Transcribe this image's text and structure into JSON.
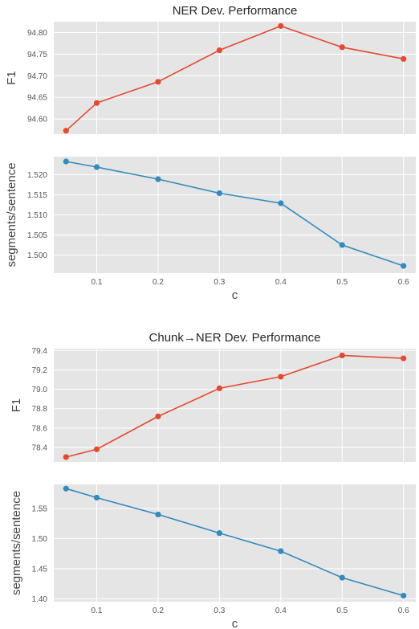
{
  "chart_data": [
    {
      "type": "line",
      "title": "NER Dev. Performance",
      "xlabel": "",
      "ylabel": "F1",
      "xlim": [
        0.03,
        0.62
      ],
      "ylim": [
        94.565,
        94.825
      ],
      "xticks": [
        0.1,
        0.2,
        0.3,
        0.4,
        0.5,
        0.6
      ],
      "yticks": [
        94.6,
        94.65,
        94.7,
        94.75,
        94.8
      ],
      "ytick_labels": [
        "94.60",
        "94.65",
        "94.70",
        "94.75",
        "94.80"
      ],
      "color": "#e24a33",
      "x": [
        0.05,
        0.1,
        0.2,
        0.3,
        0.4,
        0.5,
        0.6
      ],
      "y": [
        94.573,
        94.637,
        94.686,
        94.759,
        94.815,
        94.766,
        94.739
      ],
      "grid": true
    },
    {
      "type": "line",
      "title": "",
      "xlabel": "c",
      "ylabel": "segments/sentence",
      "xlim": [
        0.03,
        0.62
      ],
      "ylim": [
        1.4955,
        1.5245
      ],
      "xticks": [
        0.1,
        0.2,
        0.3,
        0.4,
        0.5,
        0.6
      ],
      "yticks": [
        1.5,
        1.505,
        1.51,
        1.515,
        1.52
      ],
      "ytick_labels": [
        "1.500",
        "1.505",
        "1.510",
        "1.515",
        "1.520"
      ],
      "color": "#348abd",
      "x": [
        0.05,
        0.1,
        0.2,
        0.3,
        0.4,
        0.5,
        0.6
      ],
      "y": [
        1.5233,
        1.5219,
        1.5189,
        1.5154,
        1.5129,
        1.5025,
        1.4973
      ],
      "grid": true
    },
    {
      "type": "line",
      "title": "Chunk→NER Dev. Performance",
      "xlabel": "",
      "ylabel": "F1",
      "xlim": [
        0.03,
        0.62
      ],
      "ylim": [
        78.25,
        79.42
      ],
      "xticks": [
        0.1,
        0.2,
        0.3,
        0.4,
        0.5,
        0.6
      ],
      "yticks": [
        78.4,
        78.6,
        78.8,
        79.0,
        79.2,
        79.4
      ],
      "ytick_labels": [
        "78.4",
        "78.6",
        "78.8",
        "79.0",
        "79.2",
        "79.4"
      ],
      "color": "#e24a33",
      "x": [
        0.05,
        0.1,
        0.2,
        0.3,
        0.4,
        0.5,
        0.6
      ],
      "y": [
        78.3,
        78.38,
        78.72,
        79.01,
        79.13,
        79.35,
        79.32
      ],
      "grid": true
    },
    {
      "type": "line",
      "title": "",
      "xlabel": "c",
      "ylabel": "segments/sentence",
      "xlim": [
        0.03,
        0.62
      ],
      "ylim": [
        1.395,
        1.59
      ],
      "xticks": [
        0.1,
        0.2,
        0.3,
        0.4,
        0.5,
        0.6
      ],
      "yticks": [
        1.4,
        1.45,
        1.5,
        1.55
      ],
      "ytick_labels": [
        "1.40",
        "1.45",
        "1.50",
        "1.55"
      ],
      "color": "#348abd",
      "x": [
        0.05,
        0.1,
        0.2,
        0.3,
        0.4,
        0.5,
        0.6
      ],
      "y": [
        1.583,
        1.568,
        1.54,
        1.509,
        1.479,
        1.435,
        1.405
      ],
      "grid": true
    }
  ]
}
